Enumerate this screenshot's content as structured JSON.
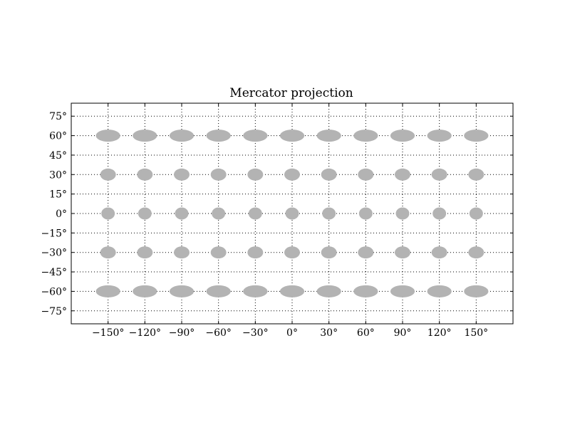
{
  "chart_data": {
    "type": "scatter",
    "title": "Mercator projection",
    "xlabel": "",
    "ylabel": "",
    "xlim": [
      -180,
      180
    ],
    "ylim": [
      -85,
      85
    ],
    "x_ticks": [
      {
        "value": -150,
        "label": "−150°"
      },
      {
        "value": -120,
        "label": "−120°"
      },
      {
        "value": -90,
        "label": "−90°"
      },
      {
        "value": -60,
        "label": "−60°"
      },
      {
        "value": -30,
        "label": "−30°"
      },
      {
        "value": 0,
        "label": "0°"
      },
      {
        "value": 30,
        "label": "30°"
      },
      {
        "value": 60,
        "label": "60°"
      },
      {
        "value": 90,
        "label": "90°"
      },
      {
        "value": 120,
        "label": "120°"
      },
      {
        "value": 150,
        "label": "150°"
      }
    ],
    "y_ticks": [
      {
        "value": 75,
        "label": "75°"
      },
      {
        "value": 60,
        "label": "60°"
      },
      {
        "value": 45,
        "label": "45°"
      },
      {
        "value": 30,
        "label": "30°"
      },
      {
        "value": 15,
        "label": "15°"
      },
      {
        "value": 0,
        "label": "0°"
      },
      {
        "value": -15,
        "label": "−15°"
      },
      {
        "value": -30,
        "label": "−30°"
      },
      {
        "value": -45,
        "label": "−45°"
      },
      {
        "value": -60,
        "label": "−60°"
      },
      {
        "value": -75,
        "label": "−75°"
      }
    ],
    "grid": true,
    "marker": "ellipse",
    "marker_color": "#b3b3b3",
    "point_longitudes": [
      -150,
      -120,
      -90,
      -60,
      -30,
      0,
      30,
      60,
      90,
      120,
      150
    ],
    "point_latitudes": [
      60,
      30,
      0,
      -30,
      -60
    ]
  }
}
